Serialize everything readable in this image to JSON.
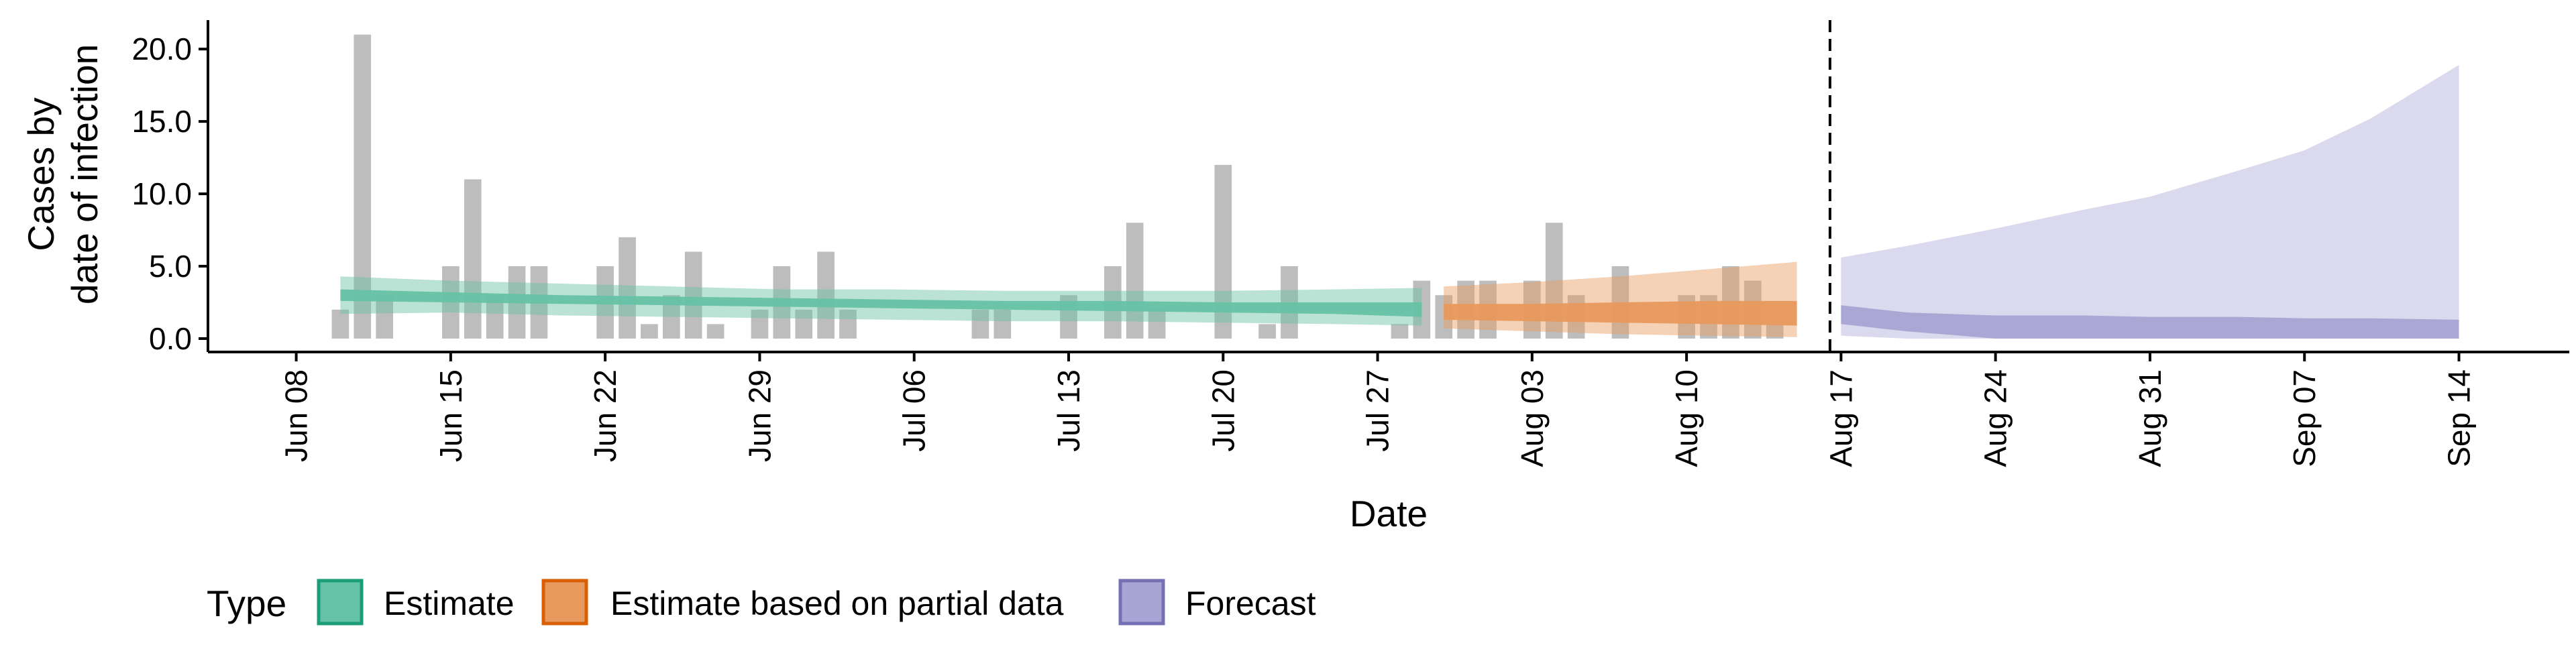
{
  "chart_data": {
    "type": "bar",
    "xlabel": "Date",
    "ylabel_lines": [
      "Cases by",
      "date of infection"
    ],
    "ylim": [
      0,
      22
    ],
    "y_ticks": [
      0,
      5,
      10,
      15,
      20
    ],
    "y_tick_labels": [
      "0.0",
      "5.0",
      "10.0",
      "15.0",
      "20.0"
    ],
    "x_range": [
      "2020-06-04",
      "2020-09-19"
    ],
    "x_ticks": [
      "2020-06-08",
      "2020-06-15",
      "2020-06-22",
      "2020-06-29",
      "2020-07-06",
      "2020-07-13",
      "2020-07-20",
      "2020-07-27",
      "2020-08-03",
      "2020-08-10",
      "2020-08-17",
      "2020-08-24",
      "2020-08-31",
      "2020-09-07",
      "2020-09-14"
    ],
    "x_tick_labels": [
      "Jun 08",
      "Jun 15",
      "Jun 22",
      "Jun 29",
      "Jul 06",
      "Jul 13",
      "Jul 20",
      "Jul 27",
      "Aug 03",
      "Aug 10",
      "Aug 17",
      "Aug 24",
      "Aug 31",
      "Sep 07",
      "Sep 14"
    ],
    "forecast_start": "2020-08-16",
    "grid": false,
    "legend": {
      "title": "Type",
      "position": "bottom",
      "entries": [
        {
          "label": "Estimate",
          "fill": "#66c2a5",
          "stroke": "#1b9e77"
        },
        {
          "label": "Estimate based on partial data",
          "fill": "#e8995e",
          "stroke": "#d95f02"
        },
        {
          "label": "Forecast",
          "fill": "#a9a4d4",
          "stroke": "#7570b3"
        }
      ]
    },
    "bar_color": "#bdbdbd",
    "observed_cases": {
      "dates": [
        "2020-06-10",
        "2020-06-11",
        "2020-06-12",
        "2020-06-15",
        "2020-06-16",
        "2020-06-17",
        "2020-06-18",
        "2020-06-19",
        "2020-06-22",
        "2020-06-23",
        "2020-06-24",
        "2020-06-25",
        "2020-06-26",
        "2020-06-27",
        "2020-06-29",
        "2020-06-30",
        "2020-07-01",
        "2020-07-02",
        "2020-07-03",
        "2020-07-09",
        "2020-07-10",
        "2020-07-13",
        "2020-07-15",
        "2020-07-16",
        "2020-07-17",
        "2020-07-20",
        "2020-07-22",
        "2020-07-23",
        "2020-07-28",
        "2020-07-29",
        "2020-07-30",
        "2020-07-31",
        "2020-08-01",
        "2020-08-03",
        "2020-08-04",
        "2020-08-05",
        "2020-08-07",
        "2020-08-10",
        "2020-08-11",
        "2020-08-12",
        "2020-08-13",
        "2020-08-14"
      ],
      "values": [
        2,
        21,
        3,
        5,
        11,
        3,
        5,
        5,
        5,
        7,
        1,
        3,
        6,
        1,
        2,
        5,
        2,
        6,
        2,
        2,
        2,
        3,
        5,
        8,
        2,
        12,
        1,
        5,
        1,
        4,
        3,
        4,
        4,
        4,
        8,
        3,
        5,
        3,
        3,
        5,
        4,
        1
      ]
    },
    "series": [
      {
        "name": "Estimate",
        "dates": [
          "2020-06-10",
          "2020-06-15",
          "2020-06-20",
          "2020-06-25",
          "2020-06-30",
          "2020-07-05",
          "2020-07-10",
          "2020-07-15",
          "2020-07-20",
          "2020-07-25",
          "2020-07-29"
        ],
        "median_lower": [
          2.6,
          2.5,
          2.4,
          2.3,
          2.2,
          2.1,
          2.0,
          1.9,
          1.8,
          1.7,
          1.5
        ],
        "median_upper": [
          3.4,
          3.2,
          3.0,
          2.9,
          2.8,
          2.7,
          2.6,
          2.6,
          2.5,
          2.5,
          2.5
        ],
        "ci_lower": [
          1.7,
          1.8,
          1.6,
          1.5,
          1.4,
          1.3,
          1.2,
          1.2,
          1.1,
          1.0,
          0.9
        ],
        "ci_upper": [
          4.3,
          4.0,
          3.8,
          3.6,
          3.4,
          3.4,
          3.3,
          3.3,
          3.3,
          3.4,
          3.5
        ]
      },
      {
        "name": "Estimate based on partial data",
        "dates": [
          "2020-07-30",
          "2020-08-03",
          "2020-08-07",
          "2020-08-11",
          "2020-08-15"
        ],
        "median_lower": [
          1.3,
          1.2,
          1.1,
          1.0,
          0.9
        ],
        "median_upper": [
          2.4,
          2.4,
          2.5,
          2.6,
          2.6
        ],
        "ci_lower": [
          0.7,
          0.5,
          0.3,
          0.2,
          0.1
        ],
        "ci_upper": [
          3.6,
          3.9,
          4.3,
          4.8,
          5.3
        ]
      },
      {
        "name": "Forecast",
        "dates": [
          "2020-08-17",
          "2020-08-20",
          "2020-08-24",
          "2020-08-28",
          "2020-08-31",
          "2020-09-04",
          "2020-09-07",
          "2020-09-10",
          "2020-09-14"
        ],
        "median_lower": [
          1.0,
          0.5,
          0.0,
          0.0,
          0.0,
          0.0,
          0.0,
          0.0,
          0.0
        ],
        "median_upper": [
          2.3,
          1.8,
          1.6,
          1.6,
          1.5,
          1.5,
          1.4,
          1.4,
          1.3
        ],
        "ci_lower": [
          0.2,
          0.0,
          0.0,
          0.0,
          0.0,
          0.0,
          0.0,
          0.0,
          0.0
        ],
        "ci_upper": [
          5.6,
          6.4,
          7.6,
          8.9,
          9.8,
          11.6,
          13.0,
          15.2,
          18.9
        ]
      }
    ]
  }
}
